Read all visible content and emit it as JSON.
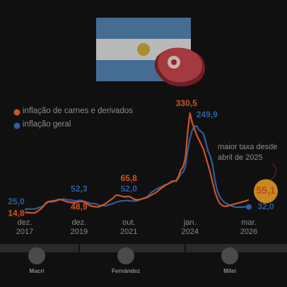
{
  "chart_data": {
    "type": "line",
    "categories": [
      "dez. 2017",
      null,
      null,
      null,
      null,
      null,
      null,
      null,
      null,
      null,
      null,
      null,
      null,
      null,
      null,
      null,
      null,
      null,
      null,
      null,
      null,
      null,
      null,
      null,
      "dez. 2019",
      null,
      null,
      null,
      null,
      null,
      null,
      null,
      null,
      null,
      null,
      null,
      null,
      null,
      null,
      null,
      null,
      null,
      null,
      null,
      null,
      null,
      "out. 2021",
      null,
      null,
      null,
      null,
      null,
      null,
      null,
      null,
      null,
      null,
      null,
      null,
      null,
      null,
      null,
      null,
      null,
      null,
      null,
      null,
      null,
      null,
      null,
      null,
      null,
      null,
      "jan. 2024",
      null,
      null,
      null,
      null,
      null,
      null,
      null,
      null,
      null,
      null,
      null,
      null,
      null,
      null,
      null,
      null,
      null,
      null,
      null,
      null,
      null,
      null,
      null,
      null,
      null,
      "mar. 2026"
    ],
    "series": [
      {
        "name": "inflação de carnes e derivados",
        "color": "#d2541f",
        "values": [
          14.8,
          14.5,
          13.8,
          13.0,
          13.2,
          15.0,
          20.0,
          25.0,
          32.0,
          42.0,
          48.0,
          50.0,
          50.5,
          52.0,
          53.0,
          56.0,
          55.0,
          53.0,
          50.0,
          48.0,
          47.0,
          46.0,
          45.0,
          47.0,
          48.9,
          50.0,
          48.0,
          45.0,
          40.0,
          36.0,
          34.0,
          33.0,
          32.0,
          33.0,
          36.0,
          40.0,
          44.0,
          50.0,
          55.0,
          60.0,
          68.0,
          70.0,
          68.0,
          66.0,
          64.0,
          65.0,
          65.8,
          62.0,
          58.0,
          55.0,
          55.0,
          56.0,
          58.0,
          60.0,
          62.0,
          66.0,
          70.0,
          74.0,
          78.0,
          84.0,
          90.0,
          95.0,
          100.0,
          104.0,
          108.0,
          112.0,
          114.0,
          116.0,
          130.0,
          150.0,
          160.0,
          190.0,
          270.0,
          330.5,
          300.0,
          280.0,
          260.0,
          245.0,
          230.0,
          215.0,
          190.0,
          165.0,
          140.0,
          110.0,
          80.0,
          60.0,
          45.0,
          38.0,
          35.0,
          34.0,
          36.0,
          38.0,
          40.0,
          42.0,
          44.0,
          46.0,
          48.0,
          50.0,
          52.0,
          55.1
        ],
        "value_labels": [
          "14,8",
          null,
          null,
          null,
          null,
          null,
          null,
          null,
          null,
          null,
          null,
          null,
          null,
          null,
          null,
          null,
          null,
          null,
          null,
          null,
          null,
          null,
          null,
          null,
          "48,9",
          null,
          null,
          null,
          null,
          null,
          null,
          null,
          null,
          null,
          null,
          null,
          null,
          null,
          null,
          null,
          null,
          null,
          null,
          null,
          null,
          null,
          "65,8",
          null,
          null,
          null,
          null,
          null,
          null,
          null,
          null,
          null,
          null,
          null,
          null,
          null,
          null,
          null,
          null,
          null,
          null,
          null,
          null,
          null,
          null,
          null,
          null,
          null,
          null,
          "330,5",
          null,
          null,
          null,
          null,
          null,
          null,
          null,
          null,
          null,
          null,
          null,
          null,
          null,
          null,
          null,
          null,
          null,
          null,
          null,
          null,
          null,
          null,
          null,
          null,
          null,
          "55,1"
        ]
      },
      {
        "name": "inflação geral",
        "color": "#2f5d9e",
        "values": [
          25.0,
          25.0,
          25.4,
          25.4,
          25.5,
          26.3,
          29.5,
          31.2,
          34.4,
          40.5,
          45.9,
          48.5,
          47.6,
          49.3,
          51.3,
          54.7,
          55.8,
          57.3,
          55.8,
          54.4,
          54.5,
          53.5,
          50.5,
          52.1,
          52.3,
          52.9,
          50.3,
          48.4,
          45.6,
          43.4,
          42.8,
          42.4,
          40.7,
          36.6,
          37.2,
          35.8,
          36.1,
          38.5,
          40.7,
          42.6,
          46.3,
          48.8,
          50.2,
          51.8,
          51.4,
          52.5,
          52.0,
          51.2,
          50.9,
          50.7,
          52.3,
          55.1,
          58.0,
          60.7,
          64.0,
          71.0,
          78.5,
          83.0,
          88.0,
          92.4,
          94.8,
          98.8,
          102.5,
          104.3,
          108.8,
          114.2,
          115.6,
          113.4,
          124.4,
          138.3,
          142.7,
          160.9,
          211.4,
          249.9,
          276.2,
          287.9,
          289.4,
          276.4,
          271.5,
          263.4,
          236.7,
          209.0,
          193.0,
          166.0,
          117.8,
          84.5,
          66.9,
          55.9,
          47.3,
          43.5,
          39.4,
          36.6,
          33.6,
          31.8,
          31.3,
          31.4,
          31.5,
          32.4,
          32.1,
          32.0
        ],
        "value_labels": [
          "25,0",
          null,
          null,
          null,
          null,
          null,
          null,
          null,
          null,
          null,
          null,
          null,
          null,
          null,
          null,
          null,
          null,
          null,
          null,
          null,
          null,
          null,
          null,
          null,
          "52,3",
          null,
          null,
          null,
          null,
          null,
          null,
          null,
          null,
          null,
          null,
          null,
          null,
          null,
          null,
          null,
          null,
          null,
          null,
          null,
          null,
          null,
          "52,0",
          null,
          null,
          null,
          null,
          null,
          null,
          null,
          null,
          null,
          null,
          null,
          null,
          null,
          null,
          null,
          null,
          null,
          null,
          null,
          null,
          null,
          null,
          null,
          null,
          null,
          null,
          "249,9",
          null,
          null,
          null,
          null,
          null,
          null,
          null,
          null,
          null,
          null,
          null,
          null,
          null,
          null,
          null,
          null,
          null,
          null,
          null,
          null,
          null,
          null,
          null,
          null,
          null,
          "32,0"
        ]
      }
    ],
    "annotation": "maior taxa desde abril de 2025",
    "presidents": [
      "Macri",
      "Fernández",
      "Milei"
    ]
  }
}
